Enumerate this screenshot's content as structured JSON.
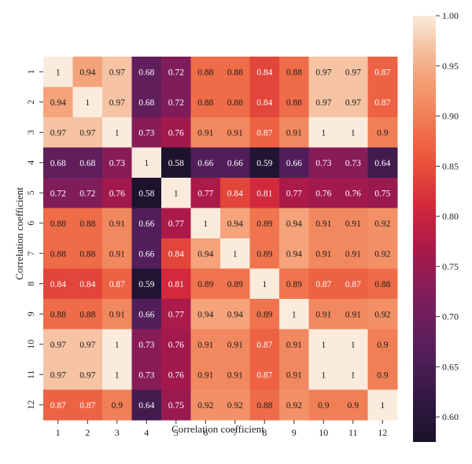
{
  "chart_data": {
    "type": "heatmap",
    "title": "",
    "xlabel": "Correlation coefficient",
    "ylabel": "Correlation coefficient",
    "x_categories": [
      "1",
      "2",
      "3",
      "4",
      "5",
      "6",
      "7",
      "8",
      "9",
      "10",
      "11",
      "12"
    ],
    "y_categories": [
      "1",
      "2",
      "3",
      "4",
      "5",
      "6",
      "7",
      "8",
      "9",
      "10",
      "11",
      "12"
    ],
    "values": [
      [
        1,
        0.94,
        0.97,
        0.68,
        0.72,
        0.88,
        0.88,
        0.84,
        0.88,
        0.97,
        0.97,
        0.87
      ],
      [
        0.94,
        1,
        0.97,
        0.68,
        0.72,
        0.88,
        0.88,
        0.84,
        0.88,
        0.97,
        0.97,
        0.87
      ],
      [
        0.97,
        0.97,
        1,
        0.73,
        0.76,
        0.91,
        0.91,
        0.87,
        0.91,
        1,
        1,
        0.9
      ],
      [
        0.68,
        0.68,
        0.73,
        1,
        0.58,
        0.66,
        0.66,
        0.59,
        0.66,
        0.73,
        0.73,
        0.64
      ],
      [
        0.72,
        0.72,
        0.76,
        0.58,
        1,
        0.77,
        0.84,
        0.81,
        0.77,
        0.76,
        0.76,
        0.75
      ],
      [
        0.88,
        0.88,
        0.91,
        0.66,
        0.77,
        1,
        0.94,
        0.89,
        0.94,
        0.91,
        0.91,
        0.92
      ],
      [
        0.88,
        0.88,
        0.91,
        0.66,
        0.84,
        0.94,
        1,
        0.89,
        0.94,
        0.91,
        0.91,
        0.92
      ],
      [
        0.84,
        0.84,
        0.87,
        0.59,
        0.81,
        0.89,
        0.89,
        1,
        0.89,
        0.87,
        0.87,
        0.88
      ],
      [
        0.88,
        0.88,
        0.91,
        0.66,
        0.77,
        0.94,
        0.94,
        0.89,
        1,
        0.91,
        0.91,
        0.92
      ],
      [
        0.97,
        0.97,
        1,
        0.73,
        0.76,
        0.91,
        0.91,
        0.87,
        0.91,
        1,
        1,
        0.9
      ],
      [
        0.97,
        0.97,
        1,
        0.73,
        0.76,
        0.91,
        0.91,
        0.87,
        0.91,
        1,
        1,
        0.9
      ],
      [
        0.87,
        0.87,
        0.9,
        0.64,
        0.75,
        0.92,
        0.92,
        0.88,
        0.92,
        0.9,
        0.9,
        1
      ]
    ],
    "colorbar": {
      "range": [
        0.575,
        1.0
      ],
      "ticks": [
        0.6,
        0.65,
        0.7,
        0.75,
        0.8,
        0.85,
        0.9,
        0.95,
        1.0
      ],
      "tick_labels": [
        "0.60",
        "0.65",
        "0.70",
        "0.75",
        "0.80",
        "0.85",
        "0.90",
        "0.95",
        "1.00"
      ]
    },
    "colormap": "rocket",
    "grid": false
  }
}
